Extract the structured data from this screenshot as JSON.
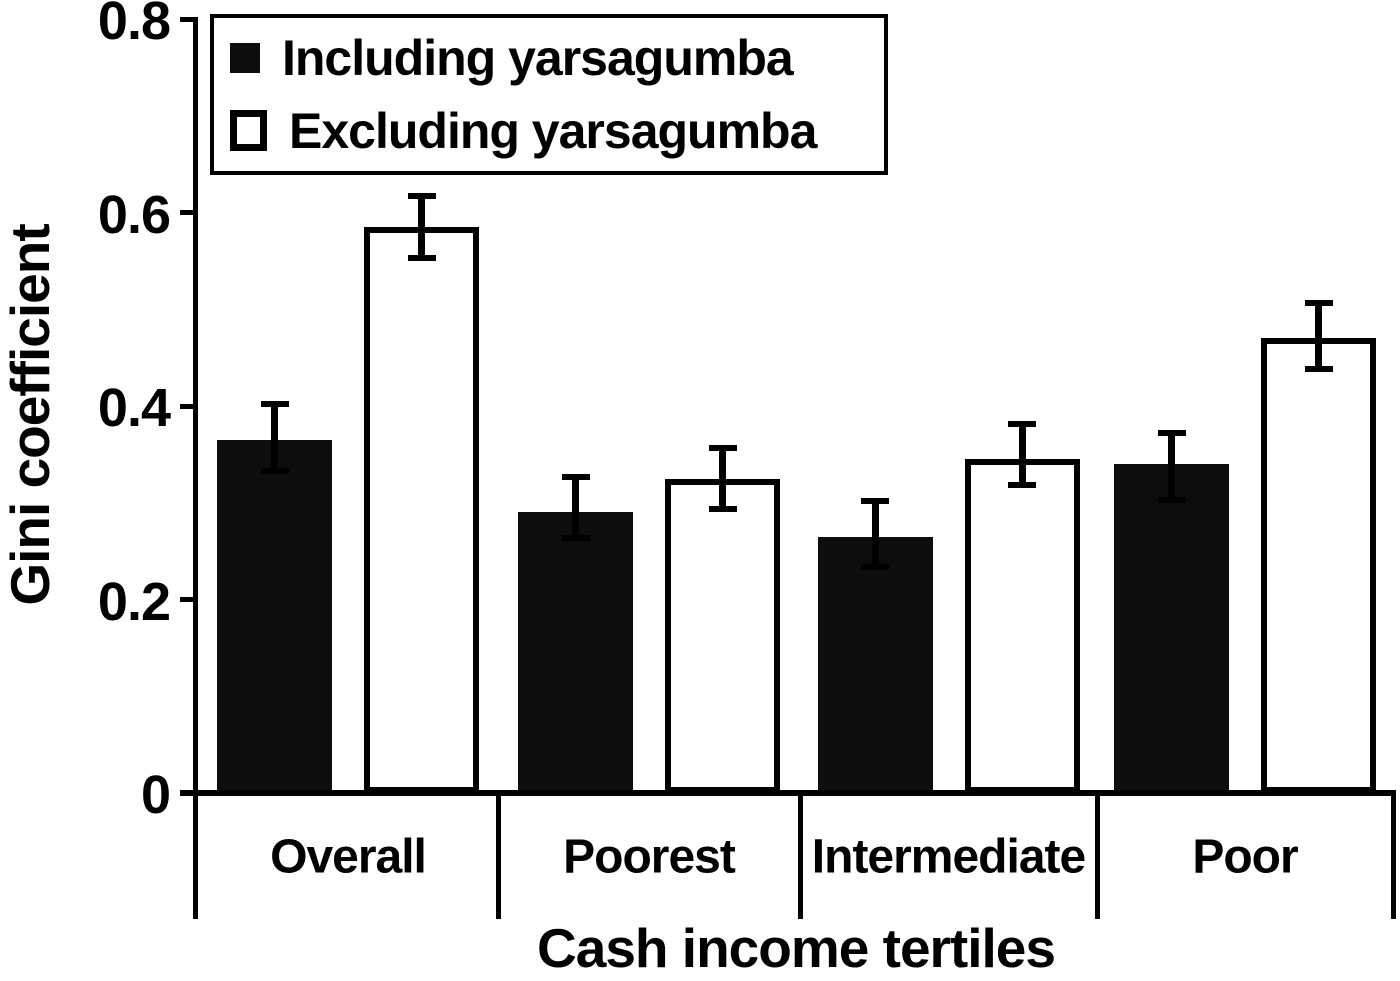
{
  "chart_data": {
    "type": "bar",
    "title": "",
    "xlabel": "Cash income tertiles",
    "ylabel": "Gini coefficient",
    "categories": [
      "Overall",
      "Poorest",
      "Intermediate",
      "Poor"
    ],
    "series": [
      {
        "name": "Including yarsagumba",
        "style": "filled",
        "fill": "#0d0d0d",
        "values": [
          0.365,
          0.29,
          0.265,
          0.34
        ],
        "error_high": [
          0.405,
          0.33,
          0.305,
          0.375
        ],
        "error_low": [
          0.33,
          0.26,
          0.23,
          0.3
        ]
      },
      {
        "name": "Excluding yarsagumba",
        "style": "outlined",
        "fill": "#ffffff",
        "values": [
          0.585,
          0.325,
          0.345,
          0.47
        ],
        "error_high": [
          0.62,
          0.36,
          0.385,
          0.51
        ],
        "error_low": [
          0.55,
          0.29,
          0.315,
          0.435
        ]
      }
    ],
    "ylim": [
      0,
      0.8
    ],
    "yticks": [
      0,
      0.2,
      0.4,
      0.6,
      0.8
    ],
    "ytick_labels": [
      "0",
      "0.2",
      "0.4",
      "0.6",
      "0.8"
    ],
    "grid": false,
    "legend_position": "top-left",
    "axis_color": "#000000",
    "background_color": "#ffffff"
  }
}
